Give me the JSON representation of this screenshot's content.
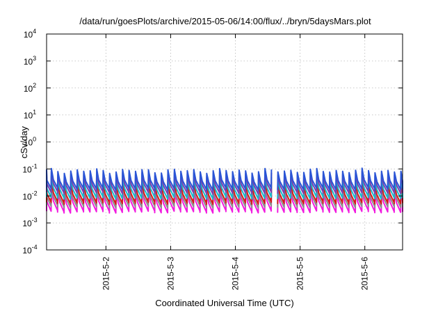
{
  "chart_data": {
    "type": "line",
    "title": "/data/run/goesPlots/archive/2015-05-06/14:00/flux/../bryn/5daysMars.plot",
    "xlabel": "Coordinated Universal Time (UTC)",
    "ylabel": "cSv/day",
    "x_range": [
      "2015-05-01T02:00",
      "2015-05-06T14:00"
    ],
    "x_ticks": [
      {
        "label": "2015-5-2",
        "time": "2015-05-02T00:00"
      },
      {
        "label": "2015-5-3",
        "time": "2015-05-03T00:00"
      },
      {
        "label": "2015-5-4",
        "time": "2015-05-04T00:00"
      },
      {
        "label": "2015-5-5",
        "time": "2015-05-05T00:00"
      },
      {
        "label": "2015-5-6",
        "time": "2015-05-06T00:00"
      }
    ],
    "y_scale": "log",
    "ylim": [
      0.0001,
      10000
    ],
    "y_ticks": [
      {
        "base": "10",
        "exp": "-4",
        "value": 0.0001
      },
      {
        "base": "10",
        "exp": "-3",
        "value": 0.001
      },
      {
        "base": "10",
        "exp": "-2",
        "value": 0.01
      },
      {
        "base": "10",
        "exp": "-1",
        "value": 0.1
      },
      {
        "base": "10",
        "exp": "0",
        "value": 1
      },
      {
        "base": "10",
        "exp": "1",
        "value": 10
      },
      {
        "base": "10",
        "exp": "2",
        "value": 100
      },
      {
        "base": "10",
        "exp": "3",
        "value": 1000
      },
      {
        "base": "10",
        "exp": "4",
        "value": 10000
      }
    ],
    "grid": true,
    "sawtooth": {
      "period_hours": 2.4,
      "gap_start": "2015-05-04T13:30",
      "gap_end": "2015-05-04T14:30"
    },
    "series": [
      {
        "color": "#2a55d6",
        "peak": 0.085,
        "trough": 0.018
      },
      {
        "color": "#7a3fb0",
        "peak": 0.065,
        "trough": 0.013
      },
      {
        "color": "#19b9c9",
        "peak": 0.045,
        "trough": 0.0085
      },
      {
        "color": "#d41a1a",
        "peak": 0.03,
        "trough": 0.0055
      },
      {
        "color": "#8c8c8c",
        "peak": 0.022,
        "trough": 0.004
      },
      {
        "color": "#f21bdf",
        "peak": 0.016,
        "trough": 0.0026
      }
    ]
  }
}
